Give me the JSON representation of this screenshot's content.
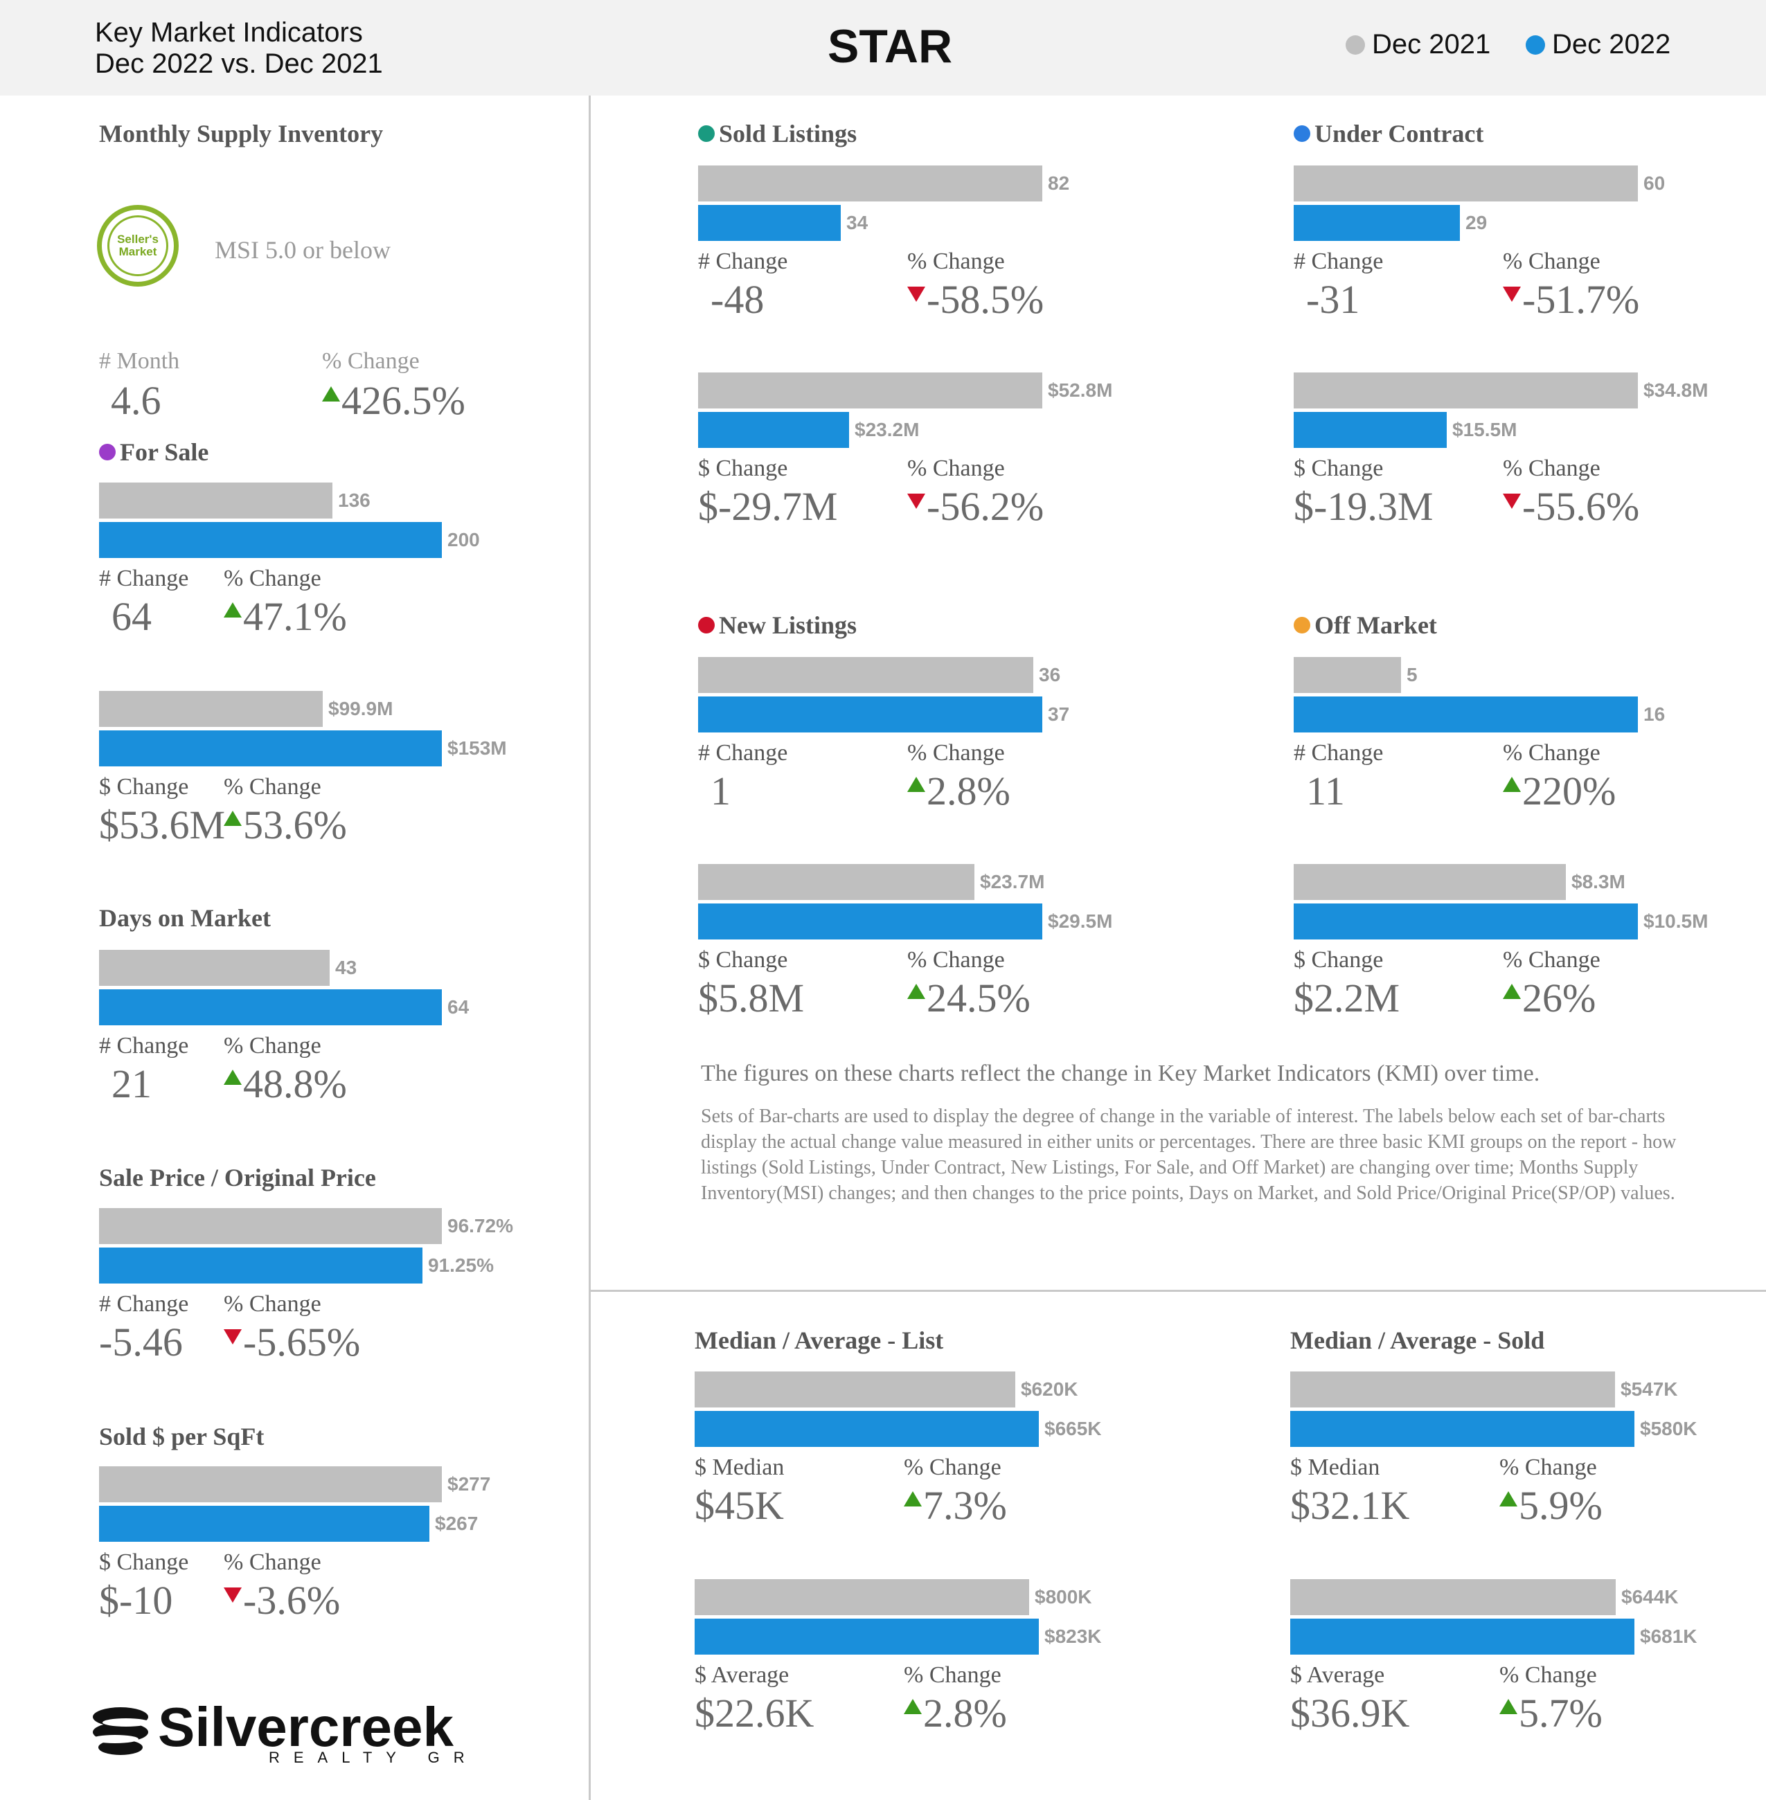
{
  "header": {
    "line1": "Key Market Indicators",
    "line2": "Dec 2022 vs. Dec 2021",
    "title": "STAR",
    "legend": [
      {
        "label": "Dec 2021",
        "color": "#bfbfbf"
      },
      {
        "label": "Dec 2022",
        "color": "#1a8fdb"
      }
    ]
  },
  "msi": {
    "title": "Monthly Supply Inventory",
    "badge": "Seller's Market",
    "note": "MSI 5.0 or below",
    "num_label": "# Month",
    "num_value": "4.6",
    "pct_label": "% Change",
    "pct_value": "426.5%",
    "direction": "up"
  },
  "sections": {
    "for_sale": {
      "title": "For Sale",
      "dot": "#9b3cc9",
      "units": {
        "prev": 136,
        "curr": 200,
        "prev_label": "136",
        "curr_label": "200",
        "change_label": "# Change",
        "change": "64",
        "pct_label": "% Change",
        "pct": "47.1%",
        "dir": "up"
      },
      "dollars": {
        "prev": 99.9,
        "curr": 153,
        "prev_label": "$99.9M",
        "curr_label": "$153M",
        "change_label": "$ Change",
        "change": "$53.6M",
        "pct_label": "% Change",
        "pct": "53.6%",
        "dir": "up"
      }
    },
    "dom": {
      "title": "Days on Market",
      "units": {
        "prev": 43,
        "curr": 64,
        "prev_label": "43",
        "curr_label": "64",
        "change_label": "# Change",
        "change": "21",
        "pct_label": "% Change",
        "pct": "48.8%",
        "dir": "up"
      }
    },
    "spop": {
      "title": "Sale Price / Original Price",
      "units": {
        "prev": 96.72,
        "curr": 91.25,
        "prev_label": "96.72%",
        "curr_label": "91.25%",
        "change_label": "# Change",
        "change": "-5.46",
        "pct_label": "% Change",
        "pct": "-5.65%",
        "dir": "down"
      }
    },
    "sqft": {
      "title": "Sold $ per SqFt",
      "units": {
        "prev": 277,
        "curr": 267,
        "prev_label": "$277",
        "curr_label": "$267",
        "change_label": "$ Change",
        "change": "$-10",
        "pct_label": "% Change",
        "pct": "-3.6%",
        "dir": "down"
      }
    },
    "sold": {
      "title": "Sold Listings",
      "dot": "#1a9a80",
      "units": {
        "prev": 82,
        "curr": 34,
        "prev_label": "82",
        "curr_label": "34",
        "change_label": "# Change",
        "change": "-48",
        "pct_label": "% Change",
        "pct": "-58.5%",
        "dir": "down"
      },
      "dollars": {
        "prev": 52.8,
        "curr": 23.2,
        "prev_label": "$52.8M",
        "curr_label": "$23.2M",
        "change_label": "$ Change",
        "change": "$-29.7M",
        "pct_label": "% Change",
        "pct": "-56.2%",
        "dir": "down"
      }
    },
    "under": {
      "title": "Under Contract",
      "dot": "#2b7de0",
      "units": {
        "prev": 60,
        "curr": 29,
        "prev_label": "60",
        "curr_label": "29",
        "change_label": "# Change",
        "change": "-31",
        "pct_label": "% Change",
        "pct": "-51.7%",
        "dir": "down"
      },
      "dollars": {
        "prev": 34.8,
        "curr": 15.5,
        "prev_label": "$34.8M",
        "curr_label": "$15.5M",
        "change_label": "$ Change",
        "change": "$-19.3M",
        "pct_label": "% Change",
        "pct": "-55.6%",
        "dir": "down"
      }
    },
    "new": {
      "title": "New Listings",
      "dot": "#d0112b",
      "units": {
        "prev": 36,
        "curr": 37,
        "prev_label": "36",
        "curr_label": "37",
        "change_label": "# Change",
        "change": "1",
        "pct_label": "% Change",
        "pct": "2.8%",
        "dir": "up"
      },
      "dollars": {
        "prev": 23.7,
        "curr": 29.5,
        "prev_label": "$23.7M",
        "curr_label": "$29.5M",
        "change_label": "$ Change",
        "change": "$5.8M",
        "pct_label": "% Change",
        "pct": "24.5%",
        "dir": "up"
      }
    },
    "off": {
      "title": "Off Market",
      "dot": "#f0a030",
      "units": {
        "prev": 5,
        "curr": 16,
        "prev_label": "5",
        "curr_label": "16",
        "change_label": "# Change",
        "change": "11",
        "pct_label": "% Change",
        "pct": "220%",
        "dir": "up"
      },
      "dollars": {
        "prev": 8.3,
        "curr": 10.5,
        "prev_label": "$8.3M",
        "curr_label": "$10.5M",
        "change_label": "$ Change",
        "change": "$2.2M",
        "pct_label": "% Change",
        "pct": "26%",
        "dir": "up"
      }
    },
    "list": {
      "title": "Median / Average - List",
      "units": {
        "prev": 620,
        "curr": 665,
        "prev_label": "$620K",
        "curr_label": "$665K",
        "change_label": "$ Median",
        "change": "$45K",
        "pct_label": "% Change",
        "pct": "7.3%",
        "dir": "up"
      },
      "dollars": {
        "prev": 800,
        "curr": 823,
        "prev_label": "$800K",
        "curr_label": "$823K",
        "change_label": "$ Average",
        "change": "$22.6K",
        "pct_label": "% Change",
        "pct": "2.8%",
        "dir": "up"
      }
    },
    "soldp": {
      "title": "Median / Average - Sold",
      "units": {
        "prev": 547,
        "curr": 580,
        "prev_label": "$547K",
        "curr_label": "$580K",
        "change_label": "$ Median",
        "change": "$32.1K",
        "pct_label": "% Change",
        "pct": "5.9%",
        "dir": "up"
      },
      "dollars": {
        "prev": 644,
        "curr": 681,
        "prev_label": "$644K",
        "curr_label": "$681K",
        "change_label": "$ Average",
        "change": "$36.9K",
        "pct_label": "% Change",
        "pct": "5.7%",
        "dir": "up"
      }
    }
  },
  "notes": {
    "main": "The figures on these charts reflect the change in Key Market Indicators (KMI) over time.",
    "sub": "Sets of Bar-charts are used to display the degree of change in the variable of interest. The labels below each set of bar-charts display the actual change value measured in either units or percentages. There are three basic KMI groups on the report - how listings (Sold Listings, Under Contract, New Listings, For Sale, and Off Market) are changing over time; Months Supply Inventory(MSI) changes; and then changes to the price points, Days on Market, and Sold Price/Original Price(SP/OP) values."
  },
  "logo": {
    "name": "Silvercreek",
    "tagline": "REALTY GROUP"
  }
}
